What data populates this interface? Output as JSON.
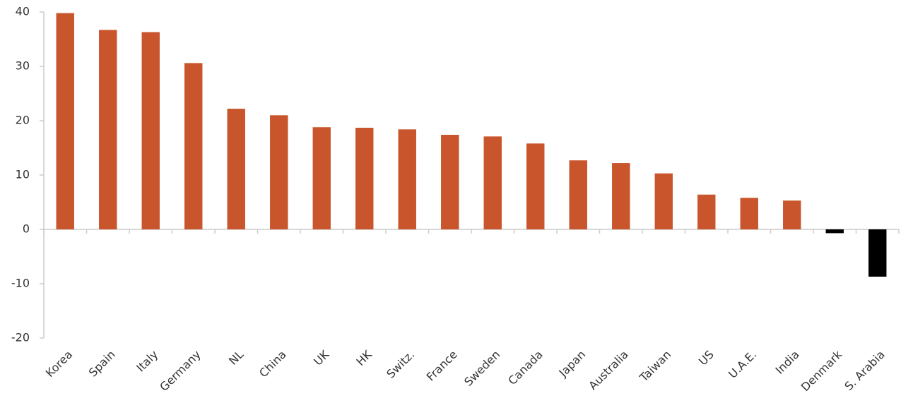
{
  "chart_data": {
    "type": "bar",
    "categories": [
      "Korea",
      "Spain",
      "Italy",
      "Germany",
      "NL",
      "China",
      "UK",
      "HK",
      "Switz.",
      "France",
      "Sweden",
      "Canada",
      "Japan",
      "Australia",
      "Taiwan",
      "US",
      "U.A.E.",
      "India",
      "Denmark",
      "S. Arabia"
    ],
    "values": [
      39.8,
      36.7,
      36.3,
      30.6,
      22.2,
      21.0,
      18.8,
      18.7,
      18.4,
      17.4,
      17.1,
      15.8,
      12.7,
      12.2,
      10.3,
      6.4,
      5.8,
      5.3,
      -0.7,
      -8.7
    ],
    "color": "#c8552b",
    "negative_color": "#000000",
    "ylim": [
      -20,
      40
    ],
    "yticks": [
      -20,
      -10,
      0,
      10,
      20,
      30,
      40
    ],
    "grid": false
  }
}
